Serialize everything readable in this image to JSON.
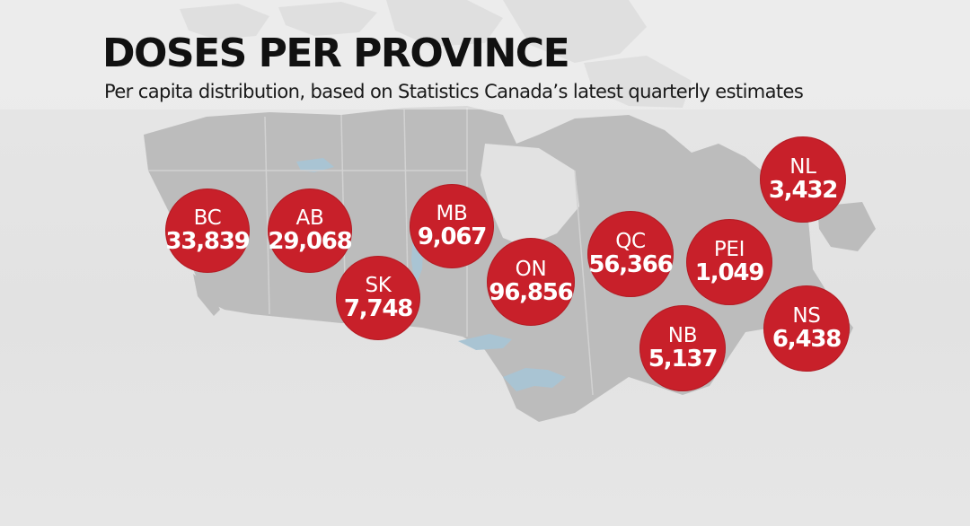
{
  "header": {
    "title": "DOSES PER PROVINCE",
    "subtitle": "Per capita distribution, based on Statistics Canada’s latest quarterly estimates"
  },
  "colors": {
    "bubble": "#c8202a",
    "map_land": "#b9b9b9",
    "background": "#e3e3e3",
    "water": "#a9c4d3"
  },
  "provinces": [
    {
      "abbr": "BC",
      "value": "33,839"
    },
    {
      "abbr": "AB",
      "value": "29,068"
    },
    {
      "abbr": "SK",
      "value": "7,748"
    },
    {
      "abbr": "MB",
      "value": "9,067"
    },
    {
      "abbr": "ON",
      "value": "96,856"
    },
    {
      "abbr": "QC",
      "value": "56,366"
    },
    {
      "abbr": "PEI",
      "value": "1,049"
    },
    {
      "abbr": "NB",
      "value": "5,137"
    },
    {
      "abbr": "NS",
      "value": "6,438"
    },
    {
      "abbr": "NL",
      "value": "3,432"
    }
  ]
}
